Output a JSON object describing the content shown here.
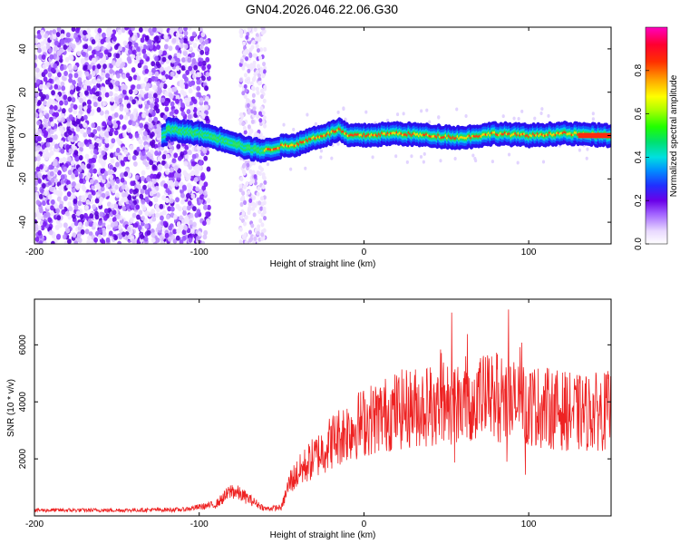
{
  "chart_data": [
    {
      "type": "heatmap",
      "title": "GN04.2026.046.22.06.G30",
      "xlabel": "Height of straight line (km)",
      "ylabel": "Frequency (Hz)",
      "xlim": [
        -200,
        150
      ],
      "ylim": [
        -50,
        50
      ],
      "xticks": [
        -200,
        -100,
        0,
        100
      ],
      "xtick_labels": [
        "-200",
        "-100",
        "0",
        "100"
      ],
      "yticks": [
        -40,
        -20,
        0,
        20,
        40
      ],
      "ytick_labels": [
        "-40",
        "-20",
        "0",
        "20",
        "40"
      ],
      "colorbar": {
        "label": "Normalized spectral amplitude",
        "range": [
          0,
          1
        ],
        "ticks": [
          0.0,
          0.2,
          0.4,
          0.6,
          0.8
        ],
        "tick_labels": [
          "0.0",
          "0.2",
          "0.4",
          "0.6",
          "0.8"
        ]
      },
      "ridge": {
        "description_points": [
          [
            -120,
            3
          ],
          [
            -100,
            1
          ],
          [
            -90,
            -1
          ],
          [
            -80,
            -3
          ],
          [
            -70,
            -6
          ],
          [
            -60,
            -7
          ],
          [
            -50,
            -5
          ],
          [
            -40,
            -4
          ],
          [
            -30,
            -1
          ],
          [
            -20,
            1
          ],
          [
            -15,
            3
          ],
          [
            -10,
            0
          ],
          [
            0,
            0
          ],
          [
            20,
            1
          ],
          [
            40,
            0
          ],
          [
            60,
            -1
          ],
          [
            80,
            1
          ],
          [
            100,
            0
          ],
          [
            120,
            1
          ],
          [
            150,
            0
          ]
        ],
        "noise_region_end": -95,
        "gap_region": [
          -95,
          -75
        ]
      }
    },
    {
      "type": "line",
      "xlabel": "Height of straight line (km)",
      "ylabel": "SNR (10 * v/v)",
      "xlim": [
        -200,
        150
      ],
      "ylim": [
        0,
        7600
      ],
      "xticks": [
        -200,
        -100,
        0,
        100
      ],
      "xtick_labels": [
        "-200",
        "-100",
        "0",
        "100"
      ],
      "yticks": [
        2000,
        4000,
        6000
      ],
      "ytick_labels": [
        "2000",
        "4000",
        "6000"
      ],
      "color": "#ee2222",
      "envelope": [
        [
          -200,
          200
        ],
        [
          -150,
          200
        ],
        [
          -110,
          220
        ],
        [
          -90,
          400
        ],
        [
          -80,
          900
        ],
        [
          -70,
          600
        ],
        [
          -60,
          250
        ],
        [
          -50,
          300
        ],
        [
          -45,
          1200
        ],
        [
          -35,
          1800
        ],
        [
          -25,
          2300
        ],
        [
          -20,
          2600
        ],
        [
          -10,
          3000
        ],
        [
          0,
          3300
        ],
        [
          10,
          3500
        ],
        [
          20,
          3700
        ],
        [
          30,
          3800
        ],
        [
          40,
          3900
        ],
        [
          50,
          4000
        ],
        [
          60,
          4100
        ],
        [
          70,
          4100
        ],
        [
          80,
          4200
        ],
        [
          90,
          4000
        ],
        [
          100,
          3900
        ],
        [
          110,
          3800
        ],
        [
          120,
          3700
        ],
        [
          130,
          3600
        ],
        [
          150,
          3700
        ]
      ]
    }
  ]
}
